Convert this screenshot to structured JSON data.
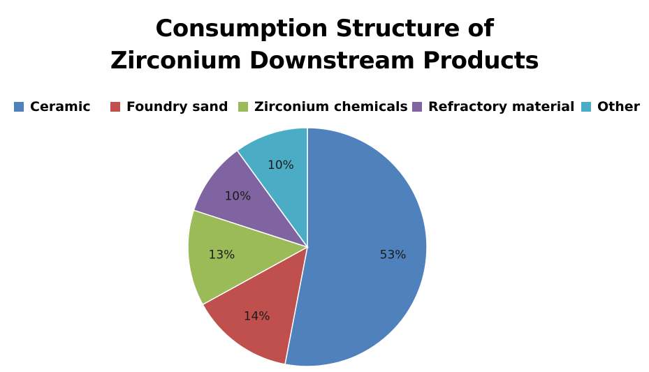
{
  "chart_data": {
    "type": "pie",
    "title_lines": [
      "Consumption Structure of",
      "Zirconium Downstream Products"
    ],
    "categories": [
      "Ceramic",
      "Foundry sand",
      "Zirconium chemicals",
      "Refractory material",
      "Other"
    ],
    "values": [
      53,
      14,
      13,
      10,
      10
    ],
    "labels": [
      "53%",
      "14%",
      "13%",
      "10%",
      "10%"
    ],
    "colors": [
      "#4f81bd",
      "#c0504d",
      "#9bbb59",
      "#8064a2",
      "#4bacc6"
    ],
    "legend_position": "top",
    "start": "12 o'clock, clockwise"
  }
}
